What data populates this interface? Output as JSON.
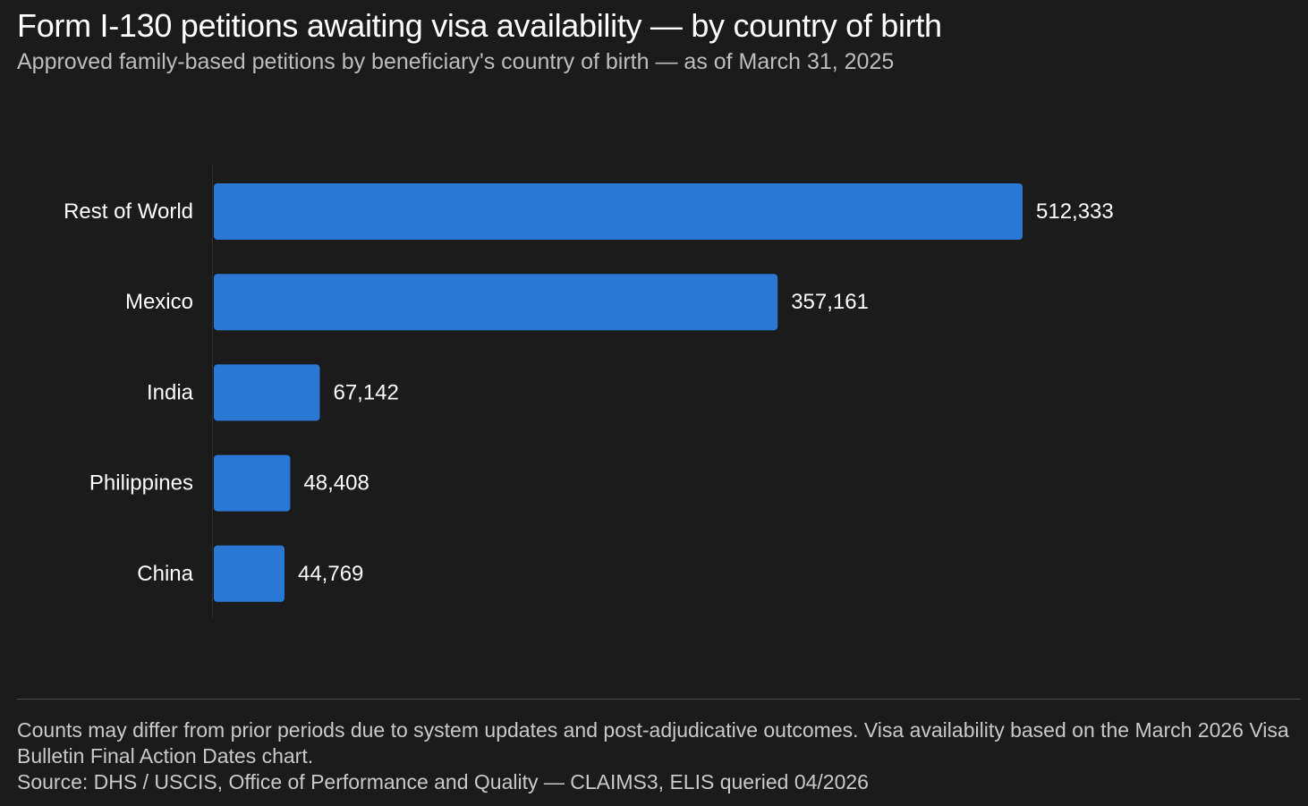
{
  "title": "Form I-130 petitions awaiting visa availability — by country of birth",
  "subtitle": "Approved family-based petitions by beneficiary's country of birth — as of March 31, 2025",
  "footer": {
    "note": "Counts may differ from prior periods due to system updates and post-adjudicative outcomes. Visa availability based on the March 2026 Visa Bulletin Final Action Dates chart.",
    "source": "Source: DHS / USCIS, Office of Performance and Quality — CLAIMS3, ELIS queried 04/2026"
  },
  "colors": {
    "background": "#1b1b1b",
    "bar": "#2a78d6",
    "text": "#ffffff",
    "muted": "#bdbdbd"
  },
  "chart_data": {
    "type": "bar",
    "orientation": "horizontal",
    "categories": [
      "Rest of World",
      "Mexico",
      "India",
      "Philippines",
      "China"
    ],
    "values": [
      512333,
      357161,
      67142,
      48408,
      44769
    ],
    "value_labels": [
      "512,333",
      "357,161",
      "67,142",
      "48,408",
      "44,769"
    ],
    "title": "Form I-130 petitions awaiting visa availability — by country of birth",
    "xlabel": "",
    "ylabel": "",
    "xlim": [
      0,
      512333
    ],
    "grid": false,
    "legend": "none"
  }
}
